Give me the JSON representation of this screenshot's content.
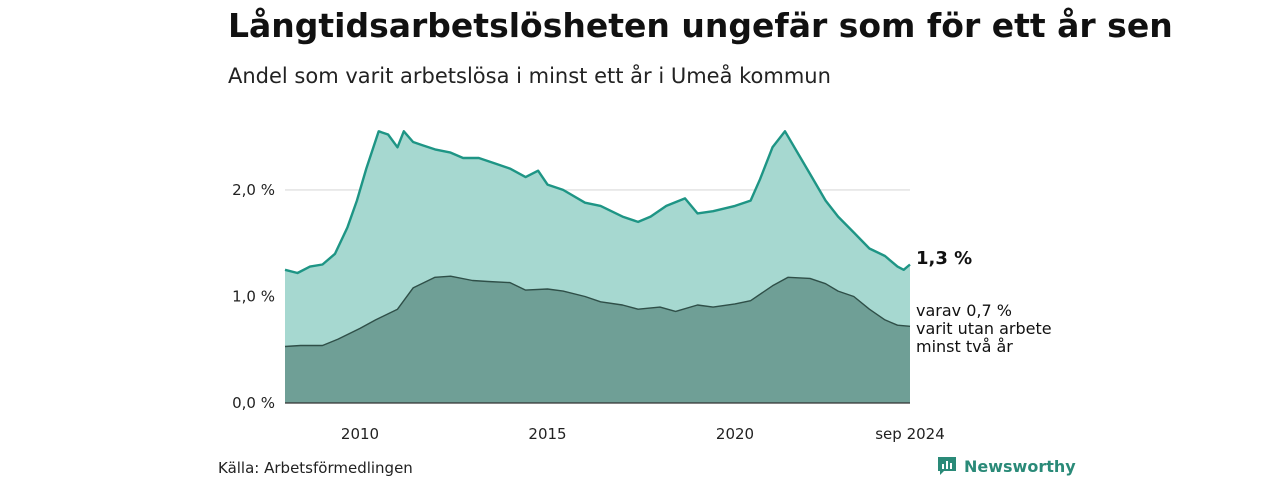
{
  "title": "Långtidsarbetslösheten ungefär som för ett år sen",
  "subtitle": "Andel som varit arbetslösa i minst ett år i Umeå kommun",
  "source": "Källa: Arbetsförmedlingen",
  "brand": "Newsworthy",
  "colors": {
    "upper_fill": "#a6d8d0",
    "upper_line": "#1e9585",
    "lower_fill": "#6f9f96",
    "lower_line": "#2f4f48"
  },
  "chart_data": {
    "type": "area",
    "title": "Långtidsarbetslösheten ungefär som för ett år sen",
    "subtitle": "Andel som varit arbetslösa i minst ett år i Umeå kommun",
    "xlabel": "",
    "ylabel": "",
    "xlim": [
      "2008-01",
      "2024-09"
    ],
    "ylim": [
      0,
      2.6
    ],
    "grid": true,
    "x_ticks": [
      "2010",
      "2015",
      "2020",
      "sep 2024"
    ],
    "y_ticks": [
      "0,0 %",
      "1,0 %",
      "2,0 %"
    ],
    "annotations": {
      "end_total": "1,3 %",
      "end_sub_line1": "varav 0,7 %",
      "end_sub_line2": "varit utan arbete",
      "end_sub_line3": "minst två år"
    },
    "series": [
      {
        "unit": "%",
        "points": [
          [
            "2008-01",
            1.25
          ],
          [
            "2008-05",
            1.22
          ],
          [
            "2008-09",
            1.28
          ],
          [
            "2009-01",
            1.3
          ],
          [
            "2009-05",
            1.4
          ],
          [
            "2009-09",
            1.65
          ],
          [
            "2009-12",
            1.9
          ],
          [
            "2010-03",
            2.2
          ],
          [
            "2010-07",
            2.55
          ],
          [
            "2010-10",
            2.52
          ],
          [
            "2011-01",
            2.4
          ],
          [
            "2011-03",
            2.55
          ],
          [
            "2011-06",
            2.45
          ],
          [
            "2011-09",
            2.42
          ],
          [
            "2012-01",
            2.38
          ],
          [
            "2012-06",
            2.35
          ],
          [
            "2012-10",
            2.3
          ],
          [
            "2013-03",
            2.3
          ],
          [
            "2013-08",
            2.25
          ],
          [
            "2014-01",
            2.2
          ],
          [
            "2014-06",
            2.12
          ],
          [
            "2014-10",
            2.18
          ],
          [
            "2015-01",
            2.05
          ],
          [
            "2015-06",
            2.0
          ],
          [
            "2016-01",
            1.88
          ],
          [
            "2016-06",
            1.85
          ],
          [
            "2017-01",
            1.75
          ],
          [
            "2017-06",
            1.7
          ],
          [
            "2017-10",
            1.75
          ],
          [
            "2018-03",
            1.85
          ],
          [
            "2018-09",
            1.92
          ],
          [
            "2019-01",
            1.78
          ],
          [
            "2019-06",
            1.8
          ],
          [
            "2020-01",
            1.85
          ],
          [
            "2020-06",
            1.9
          ],
          [
            "2020-09",
            2.1
          ],
          [
            "2021-01",
            2.4
          ],
          [
            "2021-05",
            2.55
          ],
          [
            "2021-09",
            2.35
          ],
          [
            "2022-01",
            2.15
          ],
          [
            "2022-06",
            1.9
          ],
          [
            "2022-10",
            1.75
          ],
          [
            "2023-03",
            1.6
          ],
          [
            "2023-08",
            1.45
          ],
          [
            "2024-01",
            1.38
          ],
          [
            "2024-05",
            1.28
          ],
          [
            "2024-07",
            1.25
          ],
          [
            "2024-09",
            1.3
          ]
        ]
      },
      {
        "unit": "%",
        "points": [
          [
            "2008-01",
            0.53
          ],
          [
            "2008-06",
            0.54
          ],
          [
            "2009-01",
            0.54
          ],
          [
            "2009-06",
            0.6
          ],
          [
            "2010-01",
            0.7
          ],
          [
            "2010-06",
            0.78
          ],
          [
            "2011-01",
            0.88
          ],
          [
            "2011-06",
            1.08
          ],
          [
            "2012-01",
            1.18
          ],
          [
            "2012-06",
            1.19
          ],
          [
            "2013-01",
            1.15
          ],
          [
            "2013-06",
            1.14
          ],
          [
            "2014-01",
            1.13
          ],
          [
            "2014-06",
            1.06
          ],
          [
            "2015-01",
            1.07
          ],
          [
            "2015-06",
            1.05
          ],
          [
            "2016-01",
            1.0
          ],
          [
            "2016-06",
            0.95
          ],
          [
            "2017-01",
            0.92
          ],
          [
            "2017-06",
            0.88
          ],
          [
            "2018-01",
            0.9
          ],
          [
            "2018-06",
            0.86
          ],
          [
            "2019-01",
            0.92
          ],
          [
            "2019-06",
            0.9
          ],
          [
            "2020-01",
            0.93
          ],
          [
            "2020-06",
            0.96
          ],
          [
            "2021-01",
            1.1
          ],
          [
            "2021-06",
            1.18
          ],
          [
            "2022-01",
            1.17
          ],
          [
            "2022-06",
            1.12
          ],
          [
            "2022-10",
            1.05
          ],
          [
            "2023-03",
            1.0
          ],
          [
            "2023-08",
            0.88
          ],
          [
            "2024-01",
            0.78
          ],
          [
            "2024-05",
            0.73
          ],
          [
            "2024-09",
            0.72
          ]
        ]
      }
    ]
  }
}
